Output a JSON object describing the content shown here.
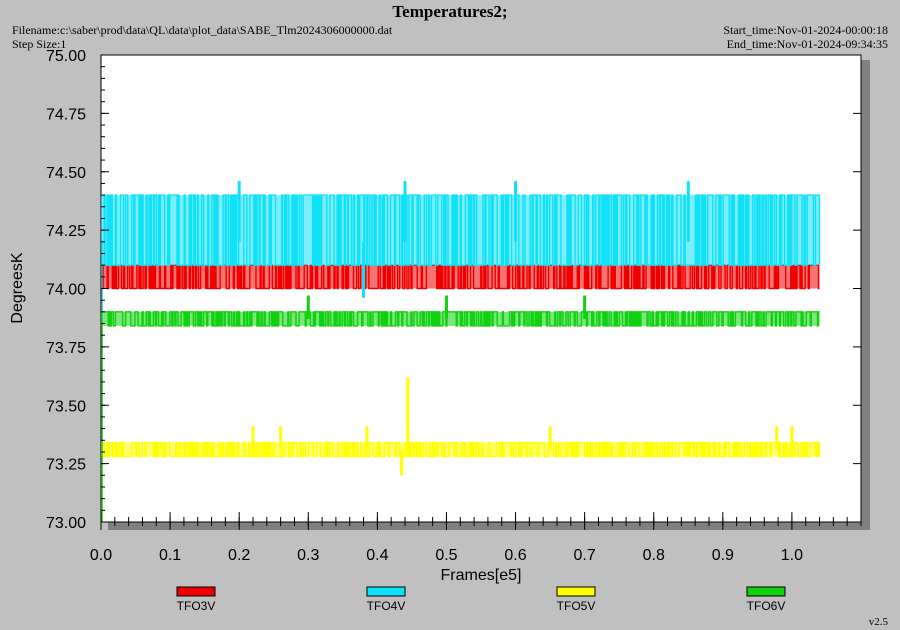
{
  "header": {
    "title": "Temperatures2;",
    "filename": "Filename:c:\\saber\\prod\\data\\QL\\data\\plot_data\\SABE_Tlm2024306000000.dat",
    "step_size": "Step Size:1",
    "start_time": "Start_time:Nov-01-2024-00:00:18",
    "end_time": "End_time:Nov-01-2024-09:34:35",
    "version": "v2.5"
  },
  "chart_data": {
    "type": "line",
    "xlabel": "Frames[e5]",
    "ylabel": "DegreesK",
    "xlim": [
      0.0,
      1.1
    ],
    "ylim": [
      73.0,
      75.0
    ],
    "x_ticks": [
      "0.0",
      "0.1",
      "0.2",
      "0.3",
      "0.4",
      "0.5",
      "0.6",
      "0.7",
      "0.8",
      "0.9",
      "1.0"
    ],
    "y_ticks": [
      "73.00",
      "73.25",
      "73.50",
      "73.75",
      "74.00",
      "74.25",
      "74.50",
      "74.75",
      "75.00"
    ],
    "x_range": [
      0.0,
      1.04
    ],
    "grid": false,
    "legend_position": "bottom",
    "series": [
      {
        "name": "TFO3V",
        "color": "#ee0000",
        "levels": [
          74.0,
          74.1
        ],
        "dominant": 74.06,
        "spikes": []
      },
      {
        "name": "TFO4V",
        "color": "#10e0f8",
        "levels": [
          74.1,
          74.4
        ],
        "dominant": 74.2,
        "spikes": [
          [
            0.2,
            74.46
          ],
          [
            0.44,
            74.46
          ],
          [
            0.6,
            74.46
          ],
          [
            0.85,
            74.46
          ],
          [
            0.38,
            73.96
          ]
        ]
      },
      {
        "name": "TFO5V",
        "color": "#ffff00",
        "levels": [
          73.28,
          73.34
        ],
        "dominant": 73.31,
        "spikes": [
          [
            0.22,
            73.41
          ],
          [
            0.26,
            73.41
          ],
          [
            0.385,
            73.41
          ],
          [
            0.435,
            73.2
          ],
          [
            0.444,
            73.62
          ],
          [
            0.65,
            73.41
          ],
          [
            0.978,
            73.41
          ],
          [
            1.0,
            73.41
          ]
        ]
      },
      {
        "name": "TFO6V",
        "color": "#10d010",
        "levels": [
          73.84,
          73.9
        ],
        "dominant": 73.87,
        "spikes": [
          [
            0.3,
            73.97
          ],
          [
            0.5,
            73.97
          ],
          [
            0.7,
            73.97
          ]
        ]
      }
    ]
  }
}
